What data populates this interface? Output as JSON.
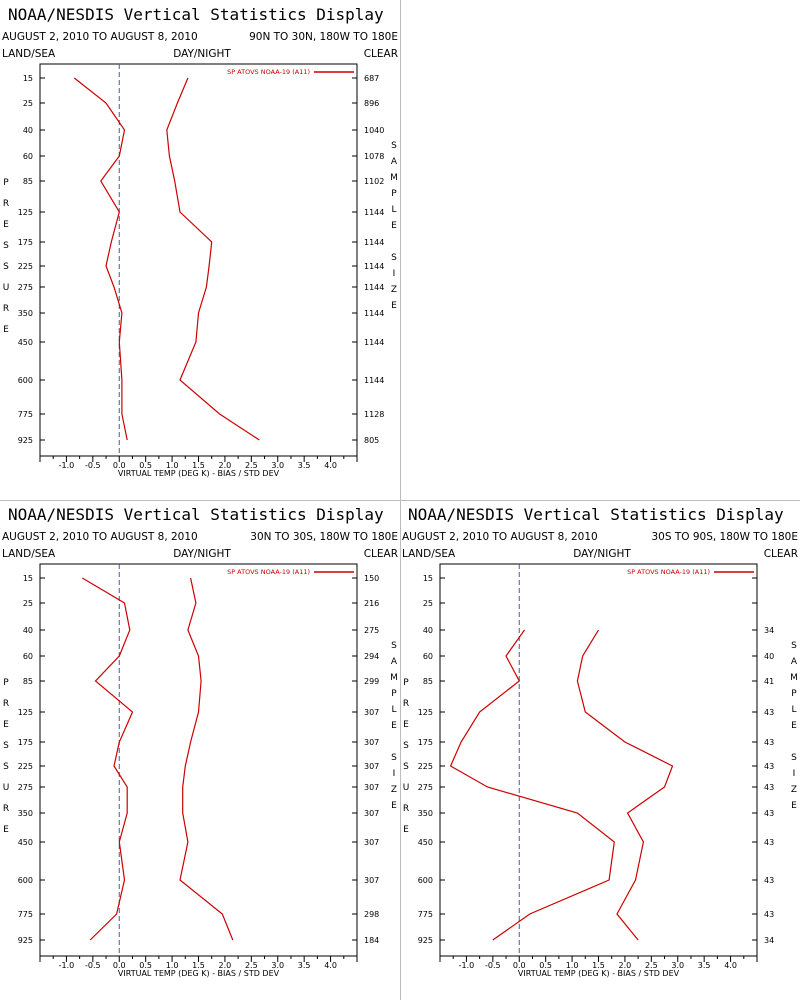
{
  "common": {
    "title": "NOAA/NESDIS Vertical Statistics Display",
    "date_range": "AUGUST 2, 2010 TO AUGUST 8, 2010",
    "land_sea": "LAND/SEA",
    "day_night": "DAY/NIGHT",
    "clear": "CLEAR",
    "xlabel": "VIRTUAL TEMP (DEG K) - BIAS / STD DEV",
    "ylabel_letters": [
      "P",
      "R",
      "E",
      "S",
      "S",
      "U",
      "R",
      "E"
    ],
    "ylabel_right_letters": [
      "S",
      "A",
      "M",
      "P",
      "L",
      "E",
      "",
      "S",
      "I",
      "Z",
      "E"
    ],
    "legend": "SP ATOVS NOAA-19 (A11)",
    "line_color": "#cc0000",
    "pressure_labels": [
      "15",
      "25",
      "40",
      "60",
      "85",
      "125",
      "175",
      "225",
      "275",
      "350",
      "450",
      "600",
      "775",
      "925"
    ],
    "x_tick_labels": [
      "-1.0",
      "-0.5",
      "0.0",
      "0.5",
      "1.0",
      "1.5",
      "2.0",
      "2.5",
      "3.0",
      "3.5",
      "4.0"
    ]
  },
  "panels": [
    {
      "region": "90N TO 30N, 180W TO 180E"
    },
    {
      "region": "30N TO 30S, 180W TO 180E"
    },
    {
      "region": "30S TO 90S, 180W TO 180E"
    }
  ],
  "chart_data": [
    {
      "type": "line",
      "title": "NOAA/NESDIS Vertical Statistics Display",
      "subtitle": "AUGUST 2, 2010 TO AUGUST 8, 2010  90N TO 30N, 180W TO 180E",
      "xlabel": "VIRTUAL TEMP (DEG K) - BIAS / STD DEV",
      "ylabel": "PRESSURE",
      "xlim": [
        -1.5,
        4.5
      ],
      "pressure": [
        15,
        25,
        40,
        60,
        85,
        125,
        175,
        225,
        275,
        350,
        450,
        600,
        775,
        925
      ],
      "series": [
        {
          "name": "SP ATOVS NOAA-19 (A11)",
          "kind": "bias",
          "values": [
            -0.85,
            -0.25,
            0.1,
            0.0,
            -0.35,
            0.0,
            -0.15,
            -0.25,
            -0.1,
            0.05,
            0.0,
            0.05,
            0.05,
            0.15
          ]
        },
        {
          "name": "SP ATOVS NOAA-19 (A11)",
          "kind": "std_dev",
          "values": [
            1.3,
            1.1,
            0.9,
            0.95,
            1.05,
            1.15,
            1.75,
            1.7,
            1.65,
            1.5,
            1.45,
            1.15,
            1.9,
            2.65
          ]
        }
      ],
      "sample_size": [
        687,
        896,
        1040,
        1078,
        1102,
        1144,
        1144,
        1144,
        1144,
        1144,
        1144,
        1144,
        1128,
        805
      ]
    },
    {
      "type": "line",
      "title": "NOAA/NESDIS Vertical Statistics Display",
      "subtitle": "AUGUST 2, 2010 TO AUGUST 8, 2010  30N TO 30S, 180W TO 180E",
      "xlabel": "VIRTUAL TEMP (DEG K) - BIAS / STD DEV",
      "ylabel": "PRESSURE",
      "xlim": [
        -1.5,
        4.5
      ],
      "pressure": [
        15,
        25,
        40,
        60,
        85,
        125,
        175,
        225,
        275,
        350,
        450,
        600,
        775,
        925
      ],
      "series": [
        {
          "name": "SP ATOVS NOAA-19 (A11)",
          "kind": "bias",
          "values": [
            -0.7,
            0.1,
            0.2,
            0.0,
            -0.45,
            0.25,
            0.0,
            -0.1,
            0.15,
            0.15,
            0.0,
            0.1,
            -0.05,
            -0.55
          ]
        },
        {
          "name": "SP ATOVS NOAA-19 (A11)",
          "kind": "std_dev",
          "values": [
            1.35,
            1.45,
            1.3,
            1.5,
            1.55,
            1.5,
            1.35,
            1.25,
            1.2,
            1.2,
            1.3,
            1.15,
            1.95,
            2.15
          ]
        }
      ],
      "sample_size": [
        150,
        216,
        275,
        294,
        299,
        307,
        307,
        307,
        307,
        307,
        307,
        307,
        298,
        184
      ]
    },
    {
      "type": "line",
      "title": "NOAA/NESDIS Vertical Statistics Display",
      "subtitle": "AUGUST 2, 2010 TO AUGUST 8, 2010  30S TO 90S, 180W TO 180E",
      "xlabel": "VIRTUAL TEMP (DEG K) - BIAS / STD DEV",
      "ylabel": "PRESSURE",
      "xlim": [
        -1.5,
        4.5
      ],
      "pressure": [
        15,
        25,
        40,
        60,
        85,
        125,
        175,
        225,
        275,
        350,
        450,
        600,
        775,
        925
      ],
      "series": [
        {
          "name": "SP ATOVS NOAA-19 (A11)",
          "kind": "bias",
          "values": [
            null,
            null,
            0.1,
            -0.25,
            0.0,
            -0.75,
            -1.1,
            -1.3,
            -0.6,
            1.1,
            1.8,
            1.7,
            0.2,
            -0.5
          ]
        },
        {
          "name": "SP ATOVS NOAA-19 (A11)",
          "kind": "std_dev",
          "values": [
            null,
            null,
            1.5,
            1.2,
            1.1,
            1.25,
            2.0,
            2.9,
            2.75,
            2.05,
            2.35,
            2.2,
            1.85,
            2.25
          ]
        }
      ],
      "sample_size": [
        null,
        null,
        34,
        40,
        41,
        43,
        43,
        43,
        43,
        43,
        43,
        43,
        43,
        34
      ]
    }
  ]
}
